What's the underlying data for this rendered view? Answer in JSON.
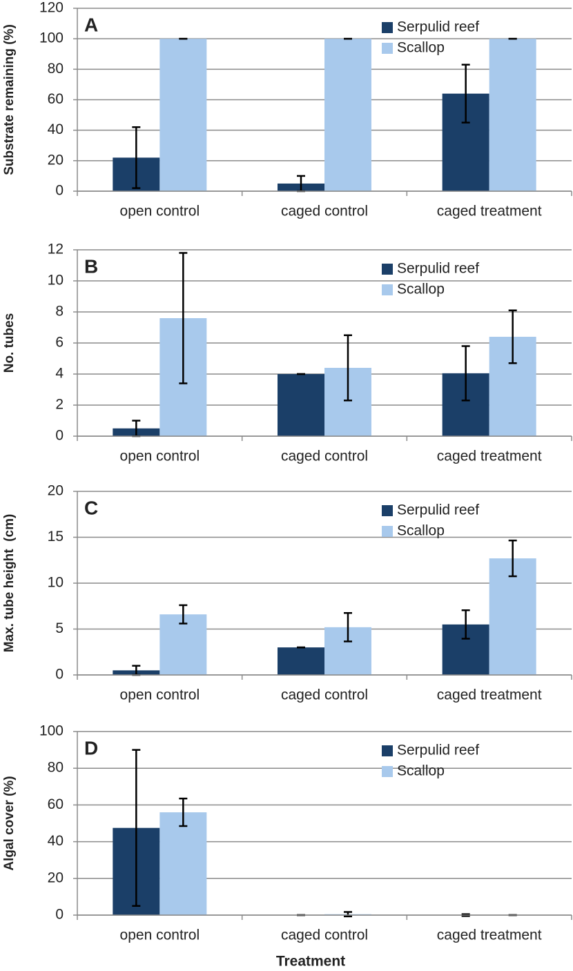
{
  "chart_data": [
    {
      "type": "bar",
      "panel_label": "A",
      "ylabel": "Substrate remaining (%)",
      "categories": [
        "open control",
        "caged control",
        "caged treatment"
      ],
      "series": [
        {
          "name": "Serpulid reef",
          "color": "#1b3f68",
          "values": [
            22,
            5,
            64
          ],
          "errors": [
            20,
            5,
            19
          ]
        },
        {
          "name": "Scallop",
          "color": "#a8c9ec",
          "values": [
            100,
            100,
            100
          ],
          "errors": [
            0,
            0,
            0
          ]
        }
      ],
      "ylim": [
        0,
        120
      ],
      "yticks": [
        0,
        20,
        40,
        60,
        80,
        100,
        120
      ],
      "grid": true,
      "legend": "upper right"
    },
    {
      "type": "bar",
      "panel_label": "B",
      "ylabel": "No. tubes",
      "categories": [
        "open control",
        "caged control",
        "caged treatment"
      ],
      "series": [
        {
          "name": "Serpulid reef",
          "color": "#1b3f68",
          "values": [
            0.5,
            4.0,
            4.05
          ],
          "errors": [
            0.5,
            0,
            1.75
          ]
        },
        {
          "name": "Scallop",
          "color": "#a8c9ec",
          "values": [
            7.6,
            4.4,
            6.4
          ],
          "errors": [
            4.2,
            2.1,
            1.7
          ]
        }
      ],
      "ylim": [
        0,
        12
      ],
      "yticks": [
        0,
        2,
        4,
        6,
        8,
        10,
        12
      ],
      "grid": true,
      "legend": "upper right"
    },
    {
      "type": "bar",
      "panel_label": "C",
      "ylabel": "Max. tube height  (cm)",
      "categories": [
        "open control",
        "caged control",
        "caged treatment"
      ],
      "series": [
        {
          "name": "Serpulid reef",
          "color": "#1b3f68",
          "values": [
            0.5,
            3.0,
            5.5
          ],
          "errors": [
            0.5,
            0,
            1.55
          ]
        },
        {
          "name": "Scallop",
          "color": "#a8c9ec",
          "values": [
            6.6,
            5.2,
            12.7
          ],
          "errors": [
            1.0,
            1.55,
            1.95
          ]
        }
      ],
      "ylim": [
        0,
        20
      ],
      "yticks": [
        0,
        5,
        10,
        15,
        20
      ],
      "grid": true,
      "legend": "upper right"
    },
    {
      "type": "bar",
      "panel_label": "D",
      "ylabel": "Algal cover (%)",
      "xlabel": "Treatment",
      "categories": [
        "open control",
        "caged control",
        "caged treatment"
      ],
      "series": [
        {
          "name": "Serpulid reef",
          "color": "#1b3f68",
          "values": [
            47.5,
            0,
            0
          ],
          "errors": [
            42.5,
            0,
            0.5
          ]
        },
        {
          "name": "Scallop",
          "color": "#a8c9ec",
          "values": [
            56,
            0.5,
            0
          ],
          "errors": [
            7.5,
            1.2,
            0
          ]
        }
      ],
      "ylim": [
        0,
        100
      ],
      "yticks": [
        0,
        20,
        40,
        60,
        80,
        100
      ],
      "grid": true,
      "legend": "upper right"
    }
  ]
}
